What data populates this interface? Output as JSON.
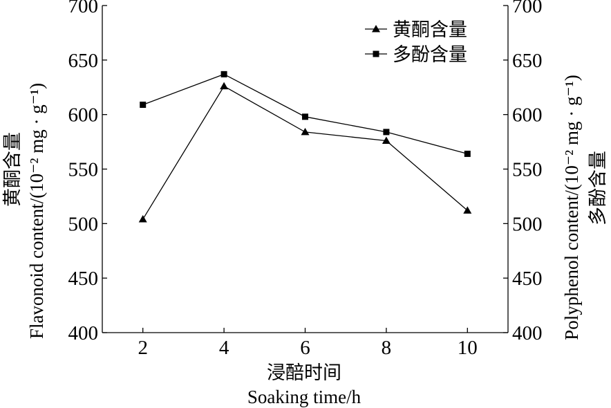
{
  "chart_data": {
    "type": "line",
    "x": [
      2,
      4,
      6,
      8,
      10
    ],
    "series": [
      {
        "name": "黄酮含量",
        "marker": "triangle",
        "values": [
          504,
          626,
          584,
          576,
          512
        ]
      },
      {
        "name": "多酚含量",
        "marker": "square",
        "values": [
          609,
          637,
          598,
          584,
          564
        ]
      }
    ],
    "xlim": [
      1,
      11
    ],
    "ylim": [
      400,
      700
    ],
    "y2lim": [
      400,
      700
    ],
    "xticks": [
      "2",
      "4",
      "6",
      "8",
      "10"
    ],
    "yticks": [
      "400",
      "450",
      "500",
      "550",
      "600",
      "650",
      "700"
    ],
    "xlabel_cn": "浸醅时间",
    "xlabel": "Soaking time/h",
    "ylabel_cn": "黄酮含量",
    "ylabel": "Flavonoid content/(10⁻² mg · g⁻¹)",
    "y2label": "Polyphenol content/(10⁻² mg · g⁻¹)",
    "y2label_cn": "多酚含量",
    "grid": false,
    "legend_position": "top-right",
    "colors": {
      "line": "#000000",
      "background": "#ffffff"
    }
  }
}
